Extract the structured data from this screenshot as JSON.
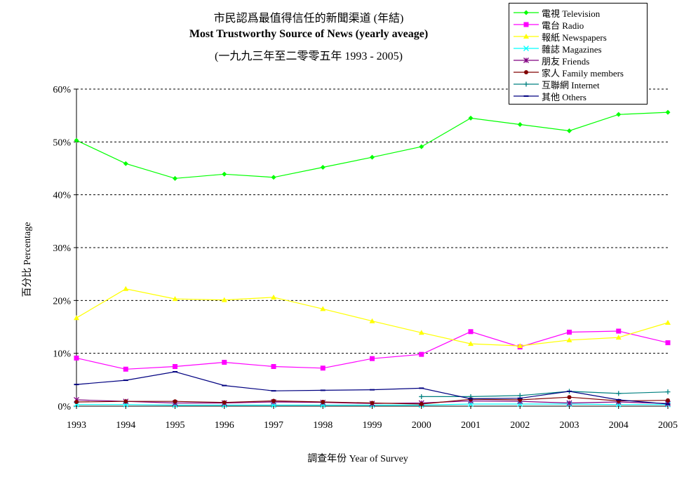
{
  "chart_data": {
    "type": "line",
    "title": "市民認爲最值得信任的新聞渠道 (年結)",
    "subtitle": "Most Trustworthy Source of News (yearly aveage)",
    "subtitle2": "(一九九三年至二零零五年 1993 - 2005)",
    "xlabel": "調查年份 Year of Survey",
    "ylabel": "百分比 Percentage",
    "x": [
      1993,
      1994,
      1995,
      1996,
      1997,
      1998,
      1999,
      2000,
      2001,
      2002,
      2003,
      2004,
      2005
    ],
    "x_tick_labels": [
      "1993",
      "1994",
      "1995",
      "1996",
      "1997",
      "1998",
      "1999",
      "2000",
      "2001",
      "2002",
      "2003",
      "2004",
      "2005"
    ],
    "ylim": [
      0,
      60
    ],
    "y_ticks": [
      0,
      10,
      20,
      30,
      40,
      50,
      60
    ],
    "y_tick_labels": [
      "0%",
      "10%",
      "20%",
      "30%",
      "40%",
      "50%",
      "60%"
    ],
    "grid": true,
    "legend_position": "top-right",
    "series": [
      {
        "name": "電視 Television",
        "color": "#00ff00",
        "marker": "diamond",
        "values": [
          50.3,
          45.9,
          43.1,
          43.9,
          43.3,
          45.2,
          47.1,
          49.1,
          54.5,
          53.3,
          52.1,
          55.2,
          55.6
        ]
      },
      {
        "name": "電台 Radio",
        "color": "#ff00ff",
        "marker": "square",
        "values": [
          9.1,
          7.0,
          7.5,
          8.3,
          7.5,
          7.2,
          9.0,
          9.8,
          14.1,
          11.2,
          14.0,
          14.2,
          12.0
        ]
      },
      {
        "name": "報紙 Newspapers",
        "color": "#ffff00",
        "marker": "triangle",
        "values": [
          16.7,
          22.2,
          20.3,
          20.1,
          20.6,
          18.4,
          16.1,
          13.9,
          11.8,
          11.4,
          12.5,
          13.0,
          15.8
        ]
      },
      {
        "name": "雜誌 Magazines",
        "color": "#00ffff",
        "marker": "x",
        "values": [
          0.3,
          0.3,
          0.2,
          0.2,
          0.2,
          0.2,
          0.2,
          0.2,
          0.4,
          0.4,
          0.4,
          0.3,
          0.3
        ]
      },
      {
        "name": "朋友 Friends",
        "color": "#800080",
        "marker": "star",
        "values": [
          1.2,
          0.9,
          0.6,
          0.6,
          0.8,
          0.7,
          0.5,
          0.6,
          1.0,
          0.9,
          0.6,
          0.8,
          0.5
        ]
      },
      {
        "name": "家人 Family members",
        "color": "#800000",
        "marker": "circle",
        "values": [
          0.8,
          0.9,
          0.9,
          0.7,
          1.0,
          0.8,
          0.6,
          0.4,
          1.3,
          1.2,
          1.7,
          1.0,
          1.1
        ]
      },
      {
        "name": "互聯網 Internet",
        "color": "#008080",
        "marker": "plus",
        "values": [
          null,
          null,
          null,
          null,
          null,
          null,
          null,
          1.8,
          1.8,
          2.0,
          2.8,
          2.4,
          2.7
        ]
      },
      {
        "name": "其他 Others",
        "color": "#000080",
        "marker": "bar",
        "values": [
          4.1,
          4.9,
          6.5,
          3.9,
          2.9,
          3.0,
          3.1,
          3.4,
          1.4,
          1.5,
          2.8,
          1.2,
          0.4
        ]
      }
    ]
  }
}
